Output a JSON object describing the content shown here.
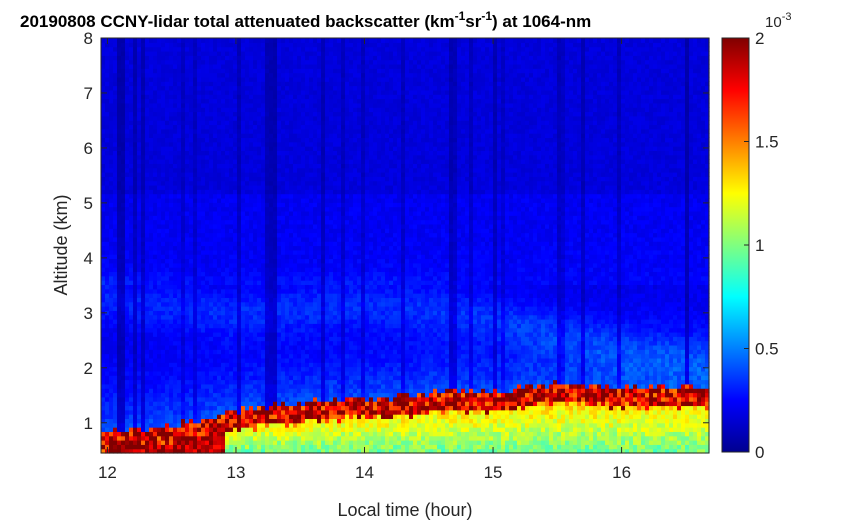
{
  "chart_data": {
    "type": "heatmap",
    "title": {
      "main": "20190808 CCNY-lidar total attenuated backscatter (km",
      "sup1": "-1",
      "mid": "sr",
      "sup2": "-1",
      "end": ") at 1064-nm"
    },
    "xlabel": "Local time (hour)",
    "ylabel": "Altitude (km)",
    "xlim": [
      11.95,
      16.68
    ],
    "ylim": [
      0.45,
      8.0
    ],
    "x_ticks": [
      "12",
      "13",
      "14",
      "15",
      "16"
    ],
    "y_ticks": [
      "1",
      "2",
      "3",
      "4",
      "5",
      "6",
      "7",
      "8"
    ],
    "colorbar": {
      "colormap": "jet",
      "range": [
        0,
        0.002
      ],
      "tick_values": [
        0,
        0.5,
        1,
        1.5,
        2
      ],
      "tick_labels": [
        "0",
        "0.5",
        "1",
        "1.5",
        "2"
      ],
      "exponent_base": "10",
      "exponent": "-3"
    },
    "boundary_layer_top_km": [
      [
        11.95,
        0.85
      ],
      [
        12.3,
        0.9
      ],
      [
        12.6,
        1.0
      ],
      [
        12.9,
        1.15
      ],
      [
        13.2,
        1.3
      ],
      [
        13.5,
        1.35
      ],
      [
        13.9,
        1.45
      ],
      [
        14.2,
        1.45
      ],
      [
        14.5,
        1.55
      ],
      [
        14.8,
        1.6
      ],
      [
        15.1,
        1.6
      ],
      [
        15.4,
        1.7
      ],
      [
        15.6,
        1.75
      ],
      [
        15.9,
        1.65
      ],
      [
        16.2,
        1.65
      ],
      [
        16.68,
        1.65
      ]
    ],
    "aerosol_layer_km": [
      [
        11.95,
        3.3
      ],
      [
        12.5,
        3.1
      ],
      [
        13.0,
        3.0
      ],
      [
        13.5,
        3.1
      ],
      [
        14.0,
        3.2
      ],
      [
        14.5,
        3.1
      ],
      [
        15.0,
        2.9
      ],
      [
        15.5,
        2.6
      ],
      [
        16.0,
        2.3
      ],
      [
        16.68,
        2.1
      ]
    ],
    "background_value": 0.00018,
    "peak_value": 0.002
  }
}
